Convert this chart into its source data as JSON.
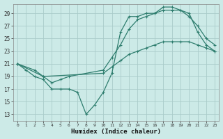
{
  "xlabel": "Humidex (Indice chaleur)",
  "bg_color": "#cceae7",
  "grid_color": "#aaccca",
  "line_color": "#2e7d6e",
  "xlim": [
    -0.5,
    23.5
  ],
  "ylim": [
    12,
    30.5
  ],
  "yticks": [
    13,
    15,
    17,
    19,
    21,
    23,
    25,
    27,
    29
  ],
  "xticks": [
    0,
    1,
    2,
    3,
    4,
    5,
    6,
    7,
    8,
    9,
    10,
    11,
    12,
    13,
    14,
    15,
    16,
    17,
    18,
    19,
    20,
    21,
    22,
    23
  ],
  "line1_x": [
    0,
    1,
    2,
    3,
    4,
    5,
    6,
    7,
    8,
    9,
    10,
    11,
    12,
    13,
    14,
    15,
    16,
    17,
    18,
    19,
    20,
    21,
    22,
    23
  ],
  "line1_y": [
    21,
    20,
    19,
    18.5,
    17,
    17,
    17,
    16.5,
    13,
    14.5,
    16.5,
    19.5,
    26,
    28.5,
    28.5,
    29,
    29,
    30,
    30,
    29.5,
    29,
    26,
    24,
    23
  ],
  "line2_x": [
    0,
    2,
    3,
    4,
    5,
    6,
    10,
    11,
    12,
    13,
    14,
    15,
    16,
    17,
    18,
    19,
    20,
    21,
    22,
    23
  ],
  "line2_y": [
    21,
    20,
    19,
    18,
    18.5,
    19,
    20,
    22,
    24,
    26.5,
    28,
    28.5,
    29,
    29.5,
    29.5,
    29.5,
    28.5,
    27,
    25,
    24
  ],
  "line3_x": [
    0,
    3,
    10,
    11,
    12,
    13,
    14,
    15,
    16,
    17,
    18,
    19,
    20,
    21,
    22,
    23
  ],
  "line3_y": [
    21,
    19,
    19.5,
    20.5,
    21.5,
    22.5,
    23,
    23.5,
    24,
    24.5,
    24.5,
    24.5,
    24.5,
    24,
    23.5,
    23
  ]
}
